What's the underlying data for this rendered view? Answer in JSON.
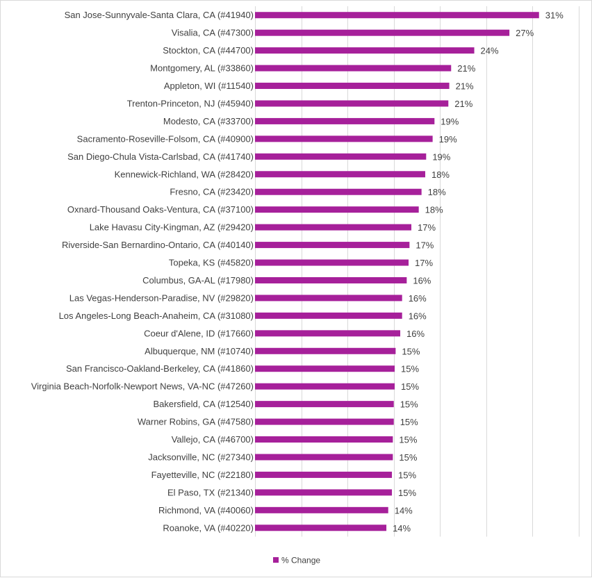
{
  "chart_data": {
    "type": "bar",
    "orientation": "horizontal",
    "title": "",
    "xlabel": "",
    "ylabel": "",
    "xlim": [
      0,
      0.35
    ],
    "grid": true,
    "legend_position": "bottom",
    "bar_color": "#A6209A",
    "categories": [
      "San Jose-Sunnyvale-Santa Clara, CA (#41940)",
      "Visalia, CA (#47300)",
      "Stockton, CA (#44700)",
      "Montgomery, AL (#33860)",
      "Appleton, WI (#11540)",
      "Trenton-Princeton, NJ (#45940)",
      "Modesto, CA (#33700)",
      "Sacramento-Roseville-Folsom, CA (#40900)",
      "San Diego-Chula Vista-Carlsbad, CA (#41740)",
      "Kennewick-Richland, WA (#28420)",
      "Fresno, CA (#23420)",
      "Oxnard-Thousand Oaks-Ventura, CA (#37100)",
      "Lake Havasu City-Kingman, AZ (#29420)",
      "Riverside-San Bernardino-Ontario, CA (#40140)",
      "Topeka, KS (#45820)",
      "Columbus, GA-AL (#17980)",
      "Las Vegas-Henderson-Paradise, NV (#29820)",
      "Los Angeles-Long Beach-Anaheim, CA (#31080)",
      "Coeur d'Alene, ID (#17660)",
      "Albuquerque, NM (#10740)",
      "San Francisco-Oakland-Berkeley, CA (#41860)",
      "Virginia Beach-Norfolk-Newport News, VA-NC (#47260)",
      "Bakersfield, CA (#12540)",
      "Warner Robins, GA (#47580)",
      "Vallejo, CA (#46700)",
      "Jacksonville, NC (#27340)",
      "Fayetteville, NC (#22180)",
      "El Paso, TX (#21340)",
      "Richmond, VA (#40060)",
      "Roanoke, VA (#40220)"
    ],
    "series": [
      {
        "name": "% Change",
        "values": [
          0.307,
          0.275,
          0.237,
          0.212,
          0.21,
          0.209,
          0.194,
          0.192,
          0.185,
          0.184,
          0.18,
          0.177,
          0.169,
          0.167,
          0.166,
          0.164,
          0.159,
          0.159,
          0.157,
          0.152,
          0.151,
          0.151,
          0.15,
          0.15,
          0.149,
          0.149,
          0.148,
          0.148,
          0.144,
          0.142
        ],
        "labels": [
          "31%",
          "27%",
          "24%",
          "21%",
          "21%",
          "21%",
          "19%",
          "19%",
          "19%",
          "18%",
          "18%",
          "18%",
          "17%",
          "17%",
          "17%",
          "16%",
          "16%",
          "16%",
          "16%",
          "15%",
          "15%",
          "15%",
          "15%",
          "15%",
          "15%",
          "15%",
          "15%",
          "15%",
          "14%",
          "14%"
        ]
      }
    ]
  }
}
